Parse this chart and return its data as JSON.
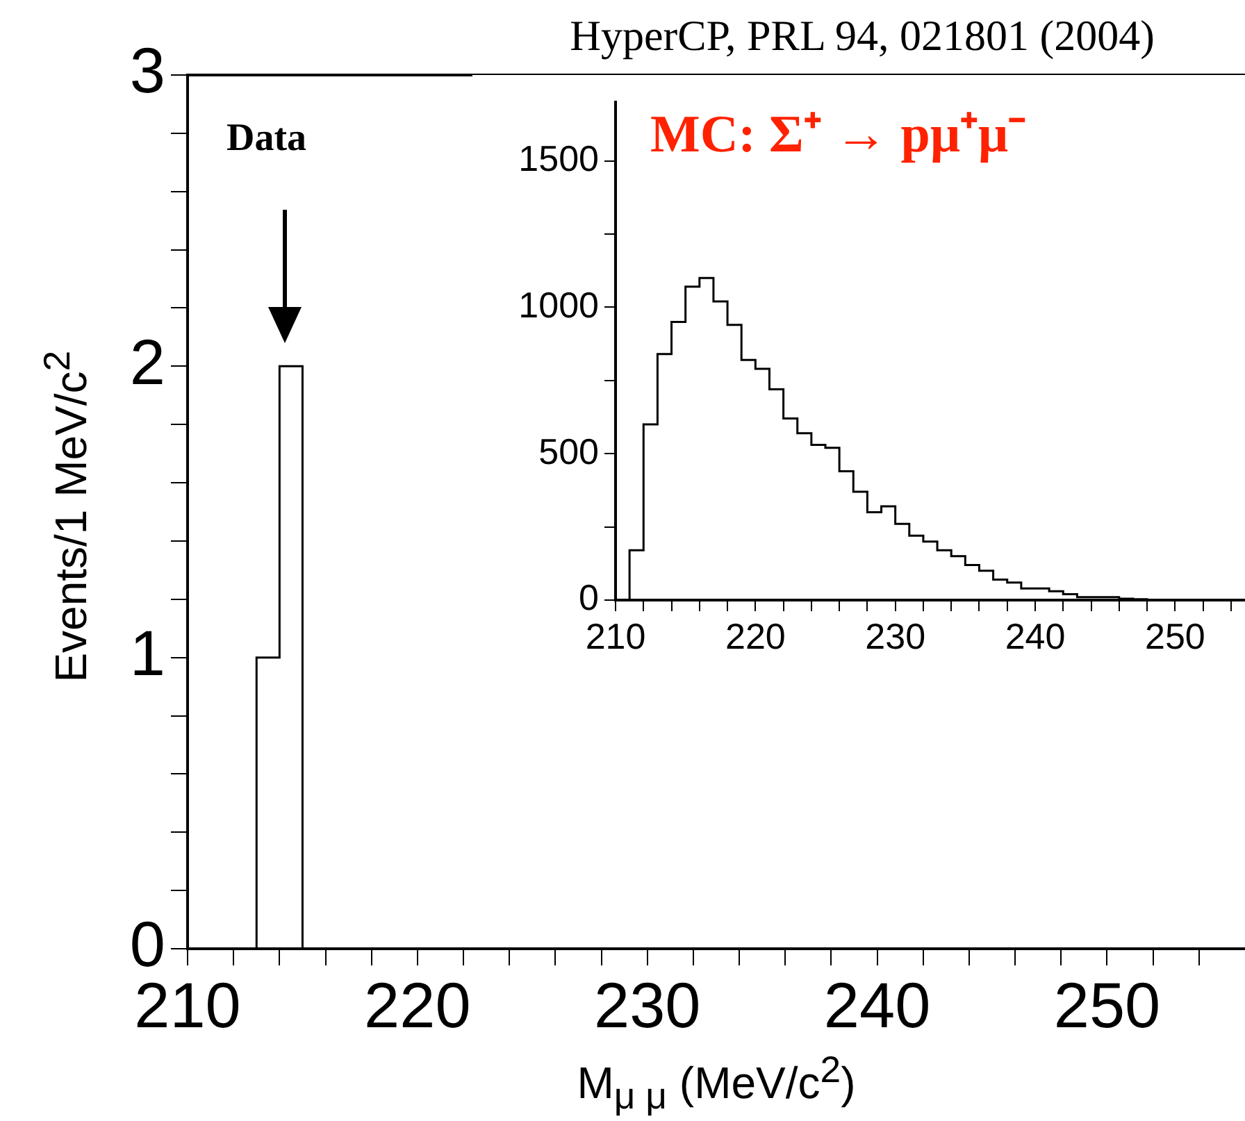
{
  "chart_data": [
    {
      "type": "histogram",
      "title": "HyperCP, PRL 94, 021801 (2004)",
      "xlabel": "M$_{μ μ}$ (MeV/c$^{2}$)",
      "ylabel": "Events/1 MeV/c$^{2}$",
      "bins": [
        213,
        214,
        215
      ],
      "values": [
        1,
        2
      ],
      "color": "#000000",
      "xlim": [
        210,
        256
      ],
      "ylim": [
        0,
        3
      ],
      "xticks": [
        210,
        {
          "value": 212,
          "label": null
        },
        {
          "value": 214,
          "label": null
        },
        {
          "value": 216,
          "label": null
        },
        {
          "value": 218,
          "label": null
        },
        220,
        {
          "value": 222,
          "label": null
        },
        {
          "value": 224,
          "label": null
        },
        {
          "value": 226,
          "label": null
        },
        {
          "value": 228,
          "label": null
        },
        230,
        {
          "value": 232,
          "label": null
        },
        {
          "value": 234,
          "label": null
        },
        {
          "value": 236,
          "label": null
        },
        {
          "value": 238,
          "label": null
        },
        240,
        {
          "value": 242,
          "label": null
        },
        {
          "value": 244,
          "label": null
        },
        {
          "value": 246,
          "label": null
        },
        {
          "value": 248,
          "label": null
        },
        250,
        {
          "value": 252,
          "label": null
        },
        {
          "value": 254,
          "label": null
        }
      ],
      "yticks": [
        0,
        {
          "value": 0.2,
          "label": null
        },
        {
          "value": 0.4,
          "label": null
        },
        {
          "value": 0.6,
          "label": null
        },
        {
          "value": 0.8,
          "label": null
        },
        1,
        {
          "value": 1.2,
          "label": null
        },
        {
          "value": 1.4,
          "label": null
        },
        {
          "value": 1.6,
          "label": null
        },
        {
          "value": 1.8,
          "label": null
        },
        2,
        {
          "value": 2.2,
          "label": null
        },
        {
          "value": 2.4,
          "label": null
        },
        {
          "value": 2.6,
          "label": null
        },
        {
          "value": 2.8,
          "label": null
        },
        3
      ],
      "annotations": [
        "Data"
      ],
      "grid": false
    },
    {
      "type": "histogram",
      "title": "MC: Σ⁺ → pμ⁺μ⁻",
      "bins": [
        211,
        212,
        213,
        214,
        215,
        216,
        217,
        218,
        219,
        220,
        221,
        222,
        223,
        224,
        225,
        226,
        227,
        228,
        229,
        230,
        231,
        232,
        233,
        234,
        235,
        236,
        237,
        238,
        239,
        240,
        241,
        242,
        243,
        244,
        245,
        246,
        247,
        248
      ],
      "values": [
        170,
        600,
        840,
        950,
        1070,
        1100,
        1020,
        940,
        820,
        790,
        720,
        620,
        570,
        530,
        520,
        440,
        370,
        300,
        320,
        260,
        220,
        200,
        170,
        150,
        120,
        100,
        70,
        60,
        40,
        40,
        30,
        20,
        10,
        10,
        10,
        5,
        3
      ],
      "color": "#000000",
      "xlim": [
        210,
        255
      ],
      "ylim": [
        0,
        1700
      ],
      "xticks": [
        210,
        {
          "value": 212,
          "label": null
        },
        {
          "value": 214,
          "label": null
        },
        {
          "value": 216,
          "label": null
        },
        {
          "value": 218,
          "label": null
        },
        220,
        {
          "value": 222,
          "label": null
        },
        {
          "value": 224,
          "label": null
        },
        {
          "value": 226,
          "label": null
        },
        {
          "value": 228,
          "label": null
        },
        230,
        {
          "value": 232,
          "label": null
        },
        {
          "value": 234,
          "label": null
        },
        {
          "value": 236,
          "label": null
        },
        {
          "value": 238,
          "label": null
        },
        240,
        {
          "value": 242,
          "label": null
        },
        {
          "value": 244,
          "label": null
        },
        {
          "value": 246,
          "label": null
        },
        {
          "value": 248,
          "label": null
        },
        250,
        {
          "value": 252,
          "label": null
        },
        {
          "value": 254,
          "label": null
        }
      ],
      "yticks": [
        0,
        {
          "value": 250,
          "label": null
        },
        500,
        {
          "value": 750,
          "label": null
        },
        1000,
        {
          "value": 1250,
          "label": null
        },
        1500
      ],
      "grid": false
    }
  ]
}
